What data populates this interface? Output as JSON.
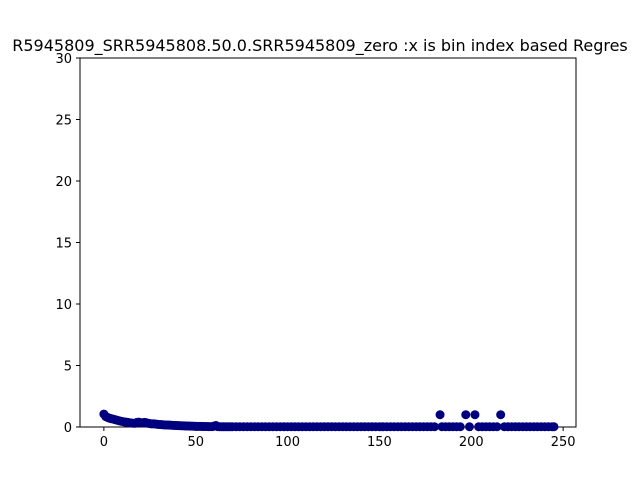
{
  "chart_data": {
    "type": "scatter",
    "title": "R5945809_SRR5945808.50.0.SRR5945809_zero :x is bin index based Regres",
    "xlabel": "",
    "ylabel": "",
    "xlim": [
      -13,
      257
    ],
    "ylim": [
      0,
      30
    ],
    "xticks": [
      0,
      50,
      100,
      150,
      200,
      250
    ],
    "yticks": [
      0,
      5,
      10,
      15,
      20,
      25,
      30
    ],
    "grid": false,
    "marker_color": "#00007f",
    "series": [
      {
        "points": [
          [
            0,
            1.05
          ],
          [
            1,
            0.85
          ],
          [
            2,
            0.78
          ],
          [
            3,
            0.72
          ],
          [
            4,
            0.68
          ],
          [
            5,
            0.64
          ],
          [
            6,
            0.6
          ],
          [
            7,
            0.56
          ],
          [
            8,
            0.52
          ],
          [
            9,
            0.48
          ],
          [
            10,
            0.45
          ],
          [
            11,
            0.42
          ],
          [
            12,
            0.4
          ],
          [
            13,
            0.38
          ],
          [
            14,
            0.35
          ],
          [
            15,
            0.33
          ],
          [
            16,
            0.3
          ],
          [
            17,
            0.3
          ],
          [
            18,
            0.38
          ],
          [
            19,
            0.4
          ],
          [
            20,
            0.36
          ],
          [
            21,
            0.34
          ],
          [
            22,
            0.38
          ],
          [
            23,
            0.36
          ],
          [
            24,
            0.3
          ],
          [
            25,
            0.28
          ],
          [
            26,
            0.25
          ],
          [
            27,
            0.26
          ],
          [
            28,
            0.24
          ],
          [
            29,
            0.22
          ],
          [
            30,
            0.2
          ],
          [
            31,
            0.2
          ],
          [
            32,
            0.18
          ],
          [
            33,
            0.17
          ],
          [
            34,
            0.16
          ],
          [
            35,
            0.16
          ],
          [
            36,
            0.15
          ],
          [
            37,
            0.14
          ],
          [
            38,
            0.13
          ],
          [
            39,
            0.12
          ],
          [
            40,
            0.12
          ],
          [
            41,
            0.11
          ],
          [
            42,
            0.1
          ],
          [
            43,
            0.1
          ],
          [
            44,
            0.09
          ],
          [
            45,
            0.08
          ],
          [
            46,
            0.08
          ],
          [
            47,
            0.07
          ],
          [
            48,
            0.07
          ],
          [
            49,
            0.06
          ],
          [
            50,
            0.06
          ],
          [
            51,
            0.05
          ],
          [
            52,
            0.05
          ],
          [
            53,
            0.05
          ],
          [
            54,
            0.04
          ],
          [
            55,
            0.04
          ],
          [
            56,
            0.04
          ],
          [
            57,
            0.03
          ],
          [
            58,
            0.03
          ],
          [
            59,
            0.03
          ],
          [
            60,
            0.08
          ],
          [
            61,
            0.12
          ],
          [
            62,
            0.03
          ],
          [
            63,
            0.02
          ],
          [
            64,
            0.02
          ],
          [
            65,
            0.02
          ],
          [
            66,
            0.02
          ],
          [
            67,
            0.02
          ],
          [
            68,
            0.02
          ],
          [
            69,
            0.02
          ],
          [
            70,
            0.02
          ],
          [
            72,
            0.02
          ],
          [
            74,
            0.02
          ],
          [
            76,
            0.02
          ],
          [
            78,
            0.02
          ],
          [
            80,
            0.02
          ],
          [
            82,
            0.02
          ],
          [
            84,
            0.02
          ],
          [
            86,
            0.02
          ],
          [
            88,
            0.02
          ],
          [
            90,
            0.02
          ],
          [
            92,
            0.02
          ],
          [
            94,
            0.02
          ],
          [
            96,
            0.02
          ],
          [
            98,
            0.02
          ],
          [
            100,
            0.02
          ],
          [
            102,
            0.02
          ],
          [
            104,
            0.02
          ],
          [
            106,
            0.02
          ],
          [
            108,
            0.02
          ],
          [
            110,
            0.02
          ],
          [
            112,
            0.02
          ],
          [
            114,
            0.02
          ],
          [
            116,
            0.02
          ],
          [
            118,
            0.02
          ],
          [
            120,
            0.02
          ],
          [
            122,
            0.02
          ],
          [
            124,
            0.02
          ],
          [
            126,
            0.02
          ],
          [
            128,
            0.02
          ],
          [
            130,
            0.02
          ],
          [
            132,
            0.02
          ],
          [
            134,
            0.02
          ],
          [
            136,
            0.02
          ],
          [
            138,
            0.02
          ],
          [
            140,
            0.02
          ],
          [
            142,
            0.02
          ],
          [
            144,
            0.02
          ],
          [
            146,
            0.02
          ],
          [
            148,
            0.02
          ],
          [
            150,
            0.02
          ],
          [
            152,
            0.02
          ],
          [
            154,
            0.02
          ],
          [
            156,
            0.02
          ],
          [
            158,
            0.02
          ],
          [
            160,
            0.02
          ],
          [
            162,
            0.02
          ],
          [
            164,
            0.02
          ],
          [
            166,
            0.02
          ],
          [
            168,
            0.02
          ],
          [
            170,
            0.02
          ],
          [
            172,
            0.02
          ],
          [
            174,
            0.02
          ],
          [
            176,
            0.02
          ],
          [
            178,
            0.02
          ],
          [
            180,
            0.02
          ],
          [
            183,
            1.0
          ],
          [
            184,
            0.02
          ],
          [
            186,
            0.02
          ],
          [
            188,
            0.02
          ],
          [
            190,
            0.02
          ],
          [
            192,
            0.02
          ],
          [
            194,
            0.02
          ],
          [
            197,
            1.0
          ],
          [
            199,
            0.02
          ],
          [
            202,
            1.0
          ],
          [
            204,
            0.02
          ],
          [
            206,
            0.02
          ],
          [
            208,
            0.02
          ],
          [
            210,
            0.02
          ],
          [
            212,
            0.02
          ],
          [
            214,
            0.02
          ],
          [
            216,
            1.0
          ],
          [
            218,
            0.02
          ],
          [
            220,
            0.02
          ],
          [
            222,
            0.02
          ],
          [
            224,
            0.02
          ],
          [
            226,
            0.02
          ],
          [
            228,
            0.02
          ],
          [
            230,
            0.02
          ],
          [
            232,
            0.02
          ],
          [
            234,
            0.02
          ],
          [
            236,
            0.02
          ],
          [
            238,
            0.02
          ],
          [
            240,
            0.02
          ],
          [
            242,
            0.02
          ],
          [
            244,
            0.02
          ],
          [
            245,
            0.02
          ]
        ]
      }
    ]
  }
}
